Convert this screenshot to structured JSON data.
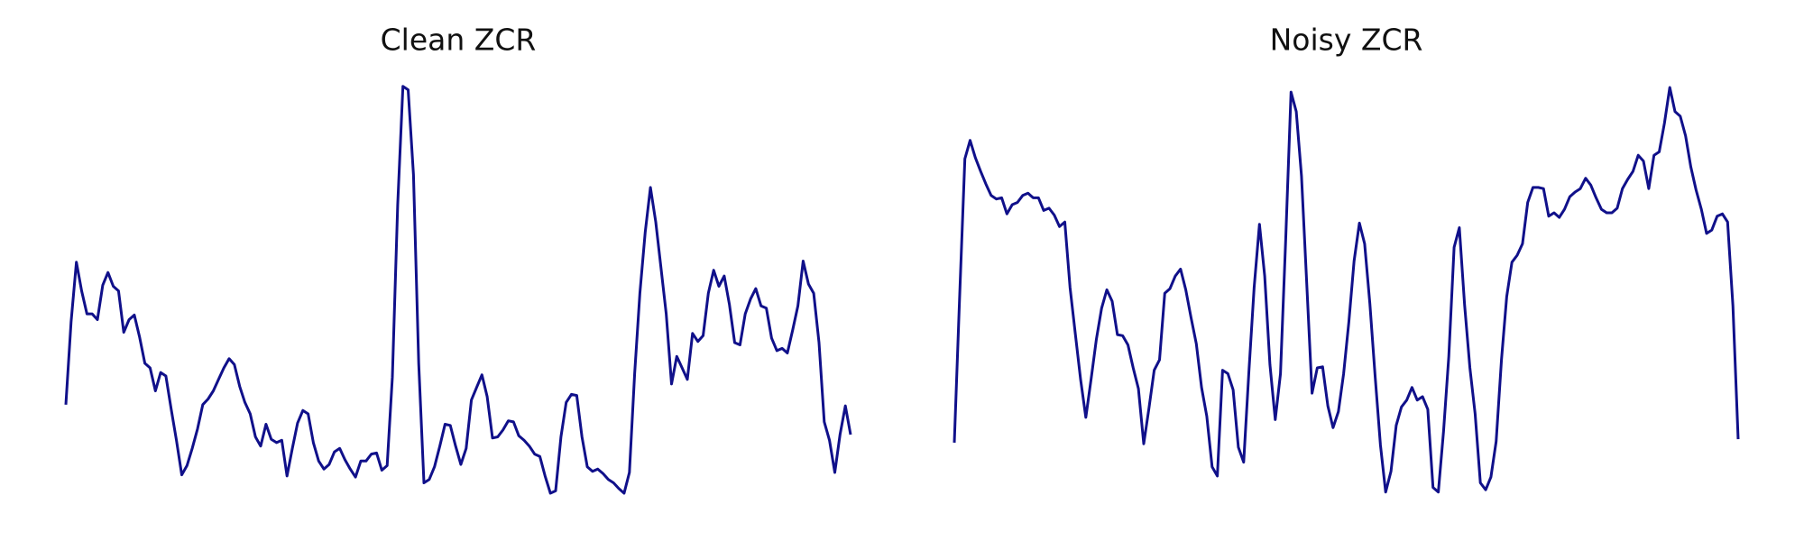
{
  "chart_data": [
    {
      "type": "line",
      "title": "Clean ZCR",
      "color": "#10108a",
      "ylim": [
        0,
        375
      ],
      "values": [
        88,
        160,
        212,
        187,
        167,
        167,
        162,
        192,
        203,
        191,
        187,
        151,
        162,
        166,
        147,
        124,
        120,
        100,
        116,
        113,
        84,
        57,
        27,
        35,
        50,
        67,
        88,
        93,
        100,
        110,
        120,
        128,
        123,
        104,
        90,
        80,
        60,
        52,
        71,
        58,
        55,
        57,
        26,
        50,
        72,
        83,
        80,
        55,
        39,
        32,
        36,
        47,
        50,
        40,
        32,
        25,
        39,
        39,
        45,
        46,
        31,
        35,
        112,
        262,
        365,
        362,
        288,
        124,
        20,
        23,
        34,
        52,
        71,
        70,
        52,
        36,
        50,
        92,
        103,
        114,
        95,
        59,
        60,
        66,
        74,
        73,
        61,
        57,
        52,
        45,
        43,
        26,
        11,
        13,
        60,
        90,
        97,
        96,
        60,
        34,
        30,
        32,
        28,
        23,
        20,
        15,
        11,
        29,
        115,
        185,
        238,
        277,
        247,
        207,
        167,
        106,
        130,
        120,
        110,
        150,
        143,
        148,
        185,
        205,
        191,
        200,
        175,
        142,
        140,
        167,
        180,
        189,
        174,
        172,
        146,
        135,
        137,
        133,
        153,
        174,
        213,
        193,
        185,
        142,
        73,
        57,
        29,
        62,
        87,
        62
      ]
    },
    {
      "type": "line",
      "title": "Noisy ZCR",
      "color": "#10108a",
      "ylim": [
        0,
        375
      ],
      "values": [
        55,
        180,
        302,
        318,
        303,
        291,
        280,
        270,
        267,
        268,
        254,
        262,
        264,
        270,
        272,
        268,
        268,
        257,
        259,
        253,
        243,
        247,
        190,
        150,
        110,
        77,
        110,
        145,
        172,
        188,
        178,
        149,
        148,
        140,
        120,
        102,
        54,
        85,
        118,
        127,
        185,
        189,
        200,
        206,
        188,
        164,
        141,
        103,
        78,
        34,
        26,
        118,
        115,
        101,
        51,
        38,
        117,
        190,
        245,
        200,
        123,
        75,
        115,
        232,
        360,
        343,
        287,
        192,
        98,
        120,
        121,
        87,
        68,
        82,
        115,
        160,
        213,
        246,
        228,
        176,
        112,
        53,
        12,
        30,
        70,
        86,
        92,
        103,
        92,
        95,
        84,
        16,
        12,
        65,
        130,
        225,
        242,
        175,
        120,
        80,
        20,
        14,
        25,
        56,
        127,
        182,
        212,
        218,
        228,
        264,
        277,
        277,
        276,
        252,
        255,
        251,
        258,
        269,
        273,
        276,
        285,
        279,
        268,
        258,
        255,
        255,
        259,
        276,
        284,
        291,
        305,
        300,
        276,
        305,
        308,
        333,
        364,
        343,
        339,
        322,
        295,
        275,
        258,
        237,
        240,
        252,
        254,
        247,
        174,
        58
      ]
    }
  ]
}
